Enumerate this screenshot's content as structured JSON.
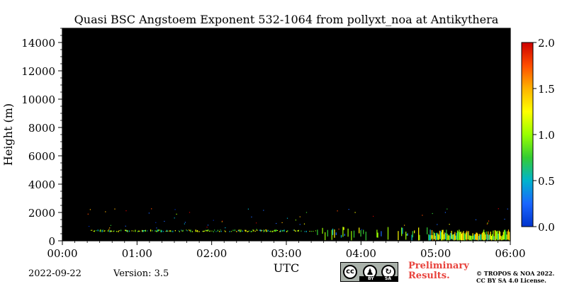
{
  "chart_data": {
    "type": "heatmap",
    "title": "Quasi BSC Angstoem Exponent 532-1064 from pollyxt_noa at Antikythera",
    "xlabel": "UTC",
    "ylabel": "Height (m)",
    "x_ticks": [
      "00:00",
      "01:00",
      "02:00",
      "03:00",
      "04:00",
      "05:00",
      "06:00"
    ],
    "xlim_hours": [
      0,
      6
    ],
    "y_ticks": [
      0,
      2000,
      4000,
      6000,
      8000,
      10000,
      12000,
      14000
    ],
    "ylim": [
      0,
      15000
    ],
    "background": "#000000",
    "colorbar": {
      "range": [
        0.0,
        2.0
      ],
      "ticks": [
        "0.0",
        "0.5",
        "1.0",
        "1.5",
        "2.0"
      ],
      "colors": [
        "#0033cc",
        "#1a66ff",
        "#00b3cc",
        "#33cc33",
        "#99ff00",
        "#ffff00",
        "#ffb300",
        "#ff4d00",
        "#cc0000"
      ]
    },
    "features": [
      {
        "name": "aerosol layer",
        "time_start_h": 0.3,
        "time_end_h": 3.4,
        "height_bottom_m": 600,
        "height_top_m": 800,
        "typical_value": 0.9
      },
      {
        "name": "dense aerosol layer",
        "time_start_h": 4.9,
        "time_end_h": 6.0,
        "height_bottom_m": 0,
        "height_top_m": 800,
        "typical_value": 1.0
      },
      {
        "name": "sparse signal",
        "time_start_h": 3.4,
        "time_end_h": 4.9,
        "height_bottom_m": 0,
        "height_top_m": 1000,
        "typical_value": 0.8
      }
    ]
  },
  "footer": {
    "date": "2022-09-22",
    "version_label": "Version: 3.5",
    "license_badge": {
      "cc": "cc",
      "by": "BY",
      "sa": "SA"
    },
    "preliminary": [
      "Preliminary",
      "Results."
    ],
    "copyright": [
      "© TROPOS & NOA 2022.",
      "CC BY SA 4.0 License."
    ]
  }
}
